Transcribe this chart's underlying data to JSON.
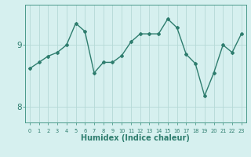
{
  "x": [
    0,
    1,
    2,
    3,
    4,
    5,
    6,
    7,
    8,
    9,
    10,
    11,
    12,
    13,
    14,
    15,
    16,
    17,
    18,
    19,
    20,
    21,
    22,
    23
  ],
  "y": [
    8.62,
    8.72,
    8.82,
    8.88,
    9.0,
    9.35,
    9.22,
    8.55,
    8.72,
    8.72,
    8.83,
    9.05,
    9.18,
    9.18,
    9.18,
    9.42,
    9.28,
    8.85,
    8.7,
    8.18,
    8.55,
    9.0,
    8.88,
    9.18
  ],
  "line_color": "#2e7d6e",
  "marker": "D",
  "marker_size": 2,
  "background_color": "#d6f0ef",
  "grid_color": "#b5d9d6",
  "axis_color": "#4a9a8a",
  "xlabel": "Humidex (Indice chaleur)",
  "xlabel_fontsize": 7,
  "tick_label_color": "#2e7d6e",
  "yticks": [
    8,
    9
  ],
  "ylim": [
    7.75,
    9.65
  ],
  "xlim": [
    -0.5,
    23.5
  ],
  "title": ""
}
